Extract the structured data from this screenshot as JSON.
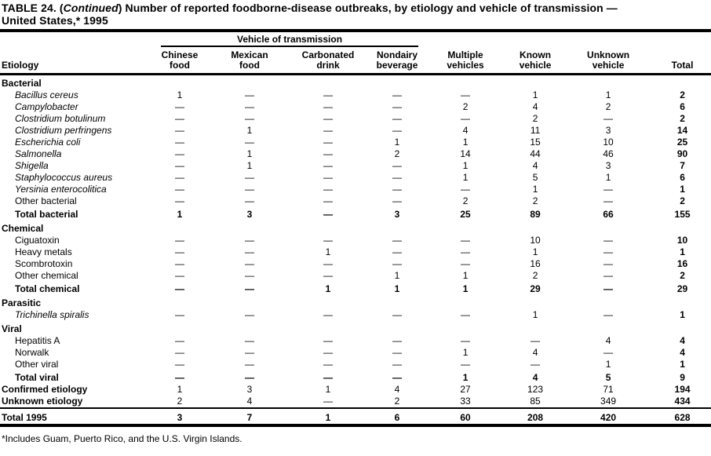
{
  "title": {
    "part1": "TABLE 24. (",
    "continued": "Continued",
    "part2": ") Number of reported foodborne-disease outbreaks, by etiology and vehicle of transmission —",
    "line2": "United States,* 1995"
  },
  "table": {
    "spanner_label": "Vehicle of transmission",
    "etiology_label": "Etiology",
    "columns": [
      {
        "line1": "Chinese",
        "line2": "food"
      },
      {
        "line1": "Mexican",
        "line2": "food"
      },
      {
        "line1": "Carbonated",
        "line2": "drink"
      },
      {
        "line1": "Nondairy",
        "line2": "beverage"
      },
      {
        "line1": "Multiple",
        "line2": "vehicles"
      },
      {
        "line1": "Known",
        "line2": "vehicle"
      },
      {
        "line1": "Unknown",
        "line2": "vehicle"
      },
      {
        "line1": "",
        "line2": "Total"
      }
    ],
    "rows": [
      {
        "type": "section",
        "label": "Bacterial"
      },
      {
        "type": "item",
        "italic": true,
        "label": "Bacillus cereus",
        "values": [
          "1",
          "—",
          "—",
          "—",
          "—",
          "1",
          "1",
          "2"
        ]
      },
      {
        "type": "item",
        "italic": true,
        "label": "Campylobacter",
        "values": [
          "—",
          "—",
          "—",
          "—",
          "2",
          "4",
          "2",
          "6"
        ]
      },
      {
        "type": "item",
        "italic": true,
        "label": "Clostridium botulinum",
        "values": [
          "—",
          "—",
          "—",
          "—",
          "—",
          "2",
          "—",
          "2"
        ]
      },
      {
        "type": "item",
        "italic": true,
        "label": "Clostridium perfringens",
        "values": [
          "—",
          "1",
          "—",
          "—",
          "4",
          "11",
          "3",
          "14"
        ]
      },
      {
        "type": "item",
        "italic": true,
        "label": "Escherichia coli",
        "values": [
          "—",
          "—",
          "—",
          "1",
          "1",
          "15",
          "10",
          "25"
        ]
      },
      {
        "type": "item",
        "italic": true,
        "label": "Salmonella",
        "values": [
          "—",
          "1",
          "—",
          "2",
          "14",
          "44",
          "46",
          "90"
        ]
      },
      {
        "type": "item",
        "italic": true,
        "label": "Shigella",
        "values": [
          "—",
          "1",
          "—",
          "—",
          "1",
          "4",
          "3",
          "7"
        ]
      },
      {
        "type": "item",
        "italic": true,
        "label": "Staphylococcus aureus",
        "values": [
          "—",
          "—",
          "—",
          "—",
          "1",
          "5",
          "1",
          "6"
        ]
      },
      {
        "type": "item",
        "italic": true,
        "label": "Yersinia enterocolitica",
        "values": [
          "—",
          "—",
          "—",
          "—",
          "—",
          "1",
          "—",
          "1"
        ]
      },
      {
        "type": "item",
        "italic": false,
        "label": "Other bacterial",
        "values": [
          "—",
          "—",
          "—",
          "—",
          "2",
          "2",
          "—",
          "2"
        ]
      },
      {
        "type": "total",
        "label": "Total bacterial",
        "values": [
          "1",
          "3",
          "—",
          "3",
          "25",
          "89",
          "66",
          "155"
        ]
      },
      {
        "type": "section",
        "label": "Chemical"
      },
      {
        "type": "item",
        "italic": false,
        "label": "Ciguatoxin",
        "values": [
          "—",
          "—",
          "—",
          "—",
          "—",
          "10",
          "—",
          "10"
        ]
      },
      {
        "type": "item",
        "italic": false,
        "label": "Heavy metals",
        "values": [
          "—",
          "—",
          "1",
          "—",
          "—",
          "1",
          "—",
          "1"
        ]
      },
      {
        "type": "item",
        "italic": false,
        "label": "Scombrotoxin",
        "values": [
          "—",
          "—",
          "—",
          "—",
          "—",
          "16",
          "—",
          "16"
        ]
      },
      {
        "type": "item",
        "italic": false,
        "label": "Other chemical",
        "values": [
          "—",
          "—",
          "—",
          "1",
          "1",
          "2",
          "—",
          "2"
        ]
      },
      {
        "type": "total",
        "label": "Total chemical",
        "values": [
          "—",
          "—",
          "1",
          "1",
          "1",
          "29",
          "—",
          "29"
        ]
      },
      {
        "type": "section",
        "label": "Parasitic"
      },
      {
        "type": "item",
        "italic": true,
        "label": "Trichinella spiralis",
        "values": [
          "—",
          "—",
          "—",
          "—",
          "—",
          "1",
          "—",
          "1"
        ]
      },
      {
        "type": "section",
        "label": "Viral"
      },
      {
        "type": "item",
        "italic": false,
        "label": "Hepatitis A",
        "values": [
          "—",
          "—",
          "—",
          "—",
          "—",
          "—",
          "4",
          "4"
        ]
      },
      {
        "type": "item",
        "italic": false,
        "label": "Norwalk",
        "values": [
          "—",
          "—",
          "—",
          "—",
          "1",
          "4",
          "—",
          "4"
        ]
      },
      {
        "type": "item",
        "italic": false,
        "label": "Other viral",
        "values": [
          "—",
          "—",
          "—",
          "—",
          "—",
          "—",
          "1",
          "1"
        ]
      },
      {
        "type": "total",
        "label": "Total viral",
        "values": [
          "—",
          "—",
          "—",
          "—",
          "1",
          "4",
          "5",
          "9"
        ]
      },
      {
        "type": "summary",
        "label": "Confirmed etiology",
        "values": [
          "1",
          "3",
          "1",
          "4",
          "27",
          "123",
          "71",
          "194"
        ]
      },
      {
        "type": "summary",
        "label": "Unknown etiology",
        "values": [
          "2",
          "4",
          "—",
          "2",
          "33",
          "85",
          "349",
          "434"
        ]
      },
      {
        "type": "grandtotal",
        "label": "Total 1995",
        "values": [
          "3",
          "7",
          "1",
          "6",
          "60",
          "208",
          "420",
          "628"
        ]
      }
    ]
  },
  "footnote": "*Includes Guam, Puerto Rico, and the U.S. Virgin Islands."
}
